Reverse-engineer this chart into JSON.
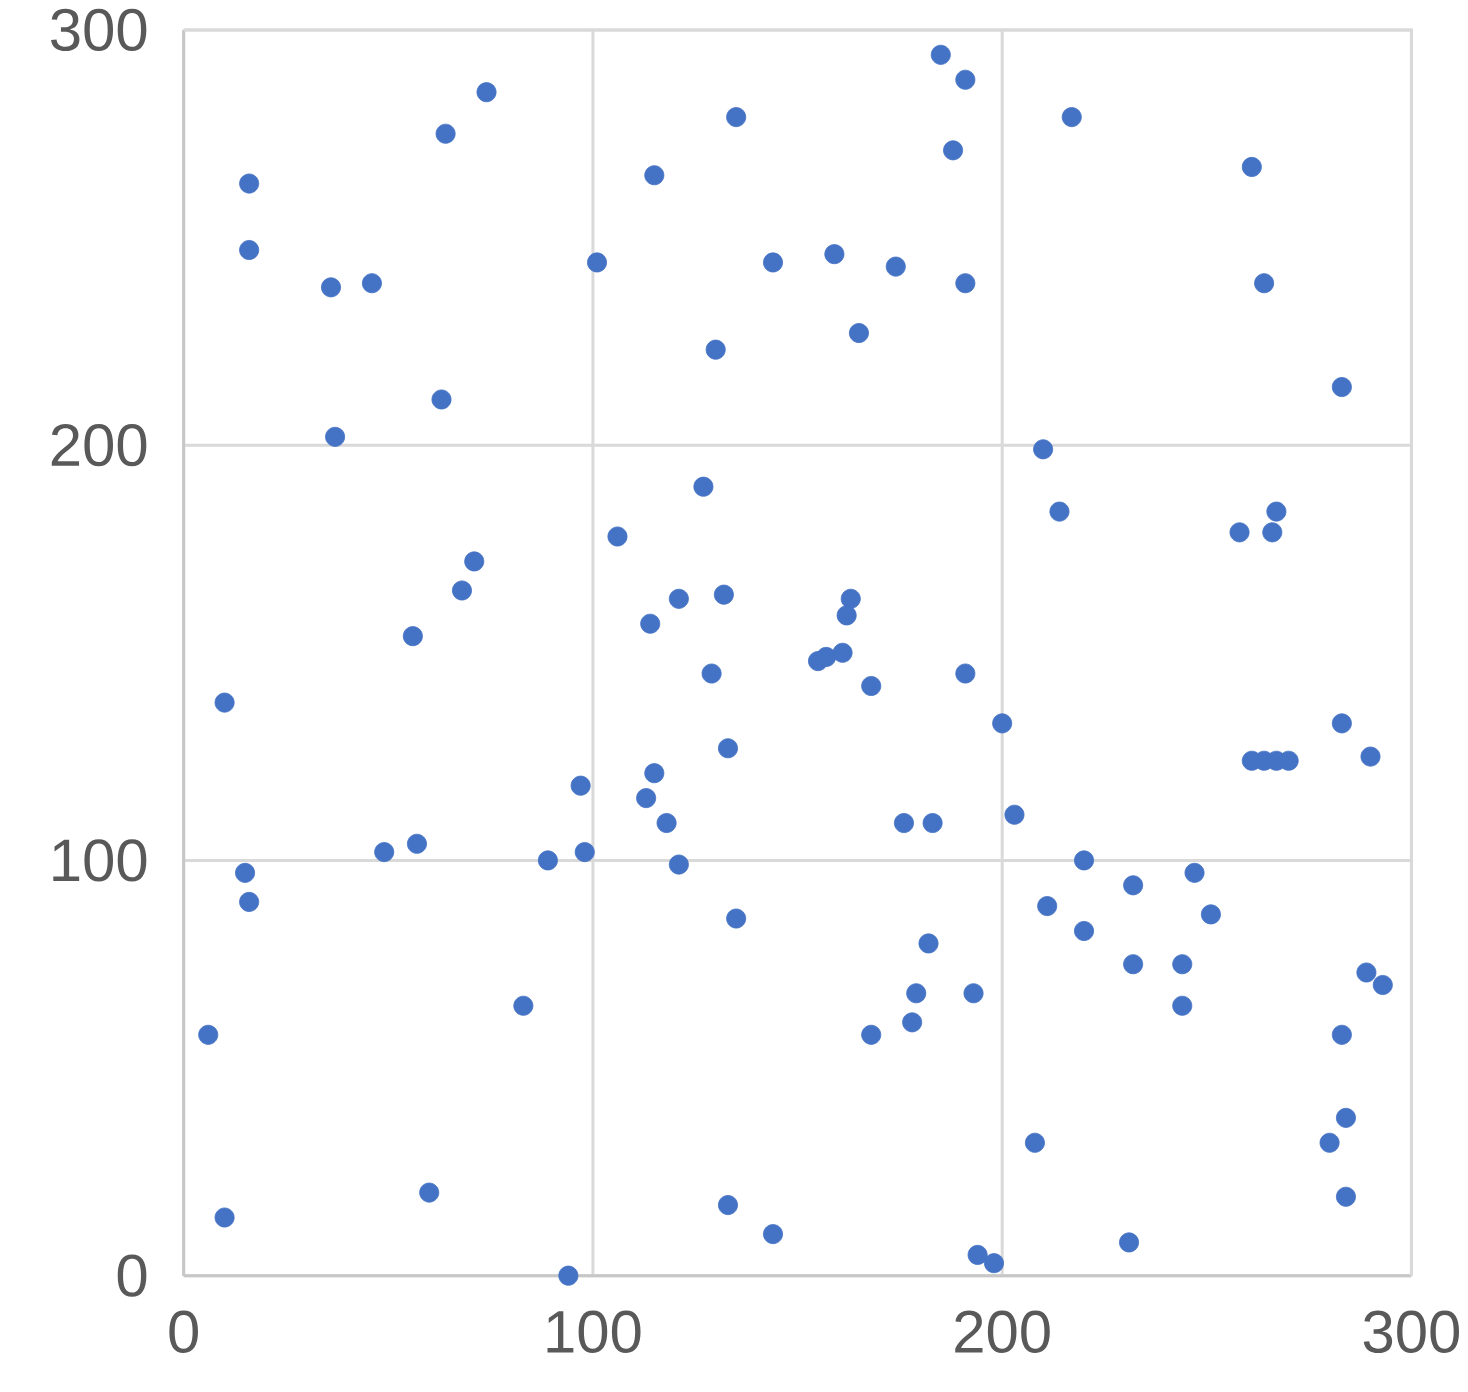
{
  "chart_data": {
    "type": "scatter",
    "x": [
      185,
      191,
      74,
      135,
      217,
      64,
      188,
      16,
      261,
      115,
      16,
      101,
      144,
      159,
      174,
      36,
      46,
      191,
      264,
      165,
      130,
      283,
      63,
      37,
      210,
      214,
      258,
      266,
      267,
      106,
      71,
      68,
      127,
      132,
      121,
      163,
      162,
      114,
      56,
      155,
      157,
      161,
      168,
      129,
      191,
      10,
      133,
      200,
      283,
      261,
      264,
      267,
      270,
      290,
      115,
      113,
      118,
      176,
      183,
      203,
      97,
      121,
      49,
      57,
      89,
      98,
      15,
      16,
      220,
      247,
      232,
      211,
      220,
      251,
      135,
      182,
      232,
      244,
      289,
      293,
      244,
      193,
      179,
      83,
      6,
      168,
      178,
      283,
      208,
      280,
      284,
      284,
      10,
      60,
      133,
      144,
      231,
      194,
      198,
      94
    ],
    "values": [
      294,
      288,
      285,
      279,
      279,
      275,
      271,
      263,
      267,
      265,
      247,
      244,
      244,
      246,
      243,
      238,
      239,
      239,
      239,
      227,
      223,
      214,
      211,
      202,
      199,
      184,
      179,
      179,
      184,
      178,
      172,
      165,
      190,
      164,
      163,
      163,
      159,
      157,
      154,
      148,
      149,
      150,
      142,
      145,
      145,
      138,
      127,
      133,
      133,
      124,
      124,
      124,
      124,
      125,
      121,
      115,
      109,
      109,
      109,
      111,
      118,
      99,
      102,
      104,
      100,
      102,
      97,
      90,
      100,
      97,
      94,
      89,
      83,
      87,
      86,
      80,
      75,
      75,
      73,
      70,
      65,
      68,
      68,
      65,
      58,
      58,
      61,
      58,
      32,
      32,
      38,
      19,
      14,
      20,
      17,
      10,
      8,
      5,
      3,
      0
    ],
    "color": "#4472c4",
    "grid": true,
    "xlim": [
      0,
      300
    ],
    "ylim": [
      0,
      300
    ],
    "xticks": [
      0,
      100,
      200,
      300
    ],
    "yticks": [
      0,
      100,
      200,
      300
    ]
  }
}
